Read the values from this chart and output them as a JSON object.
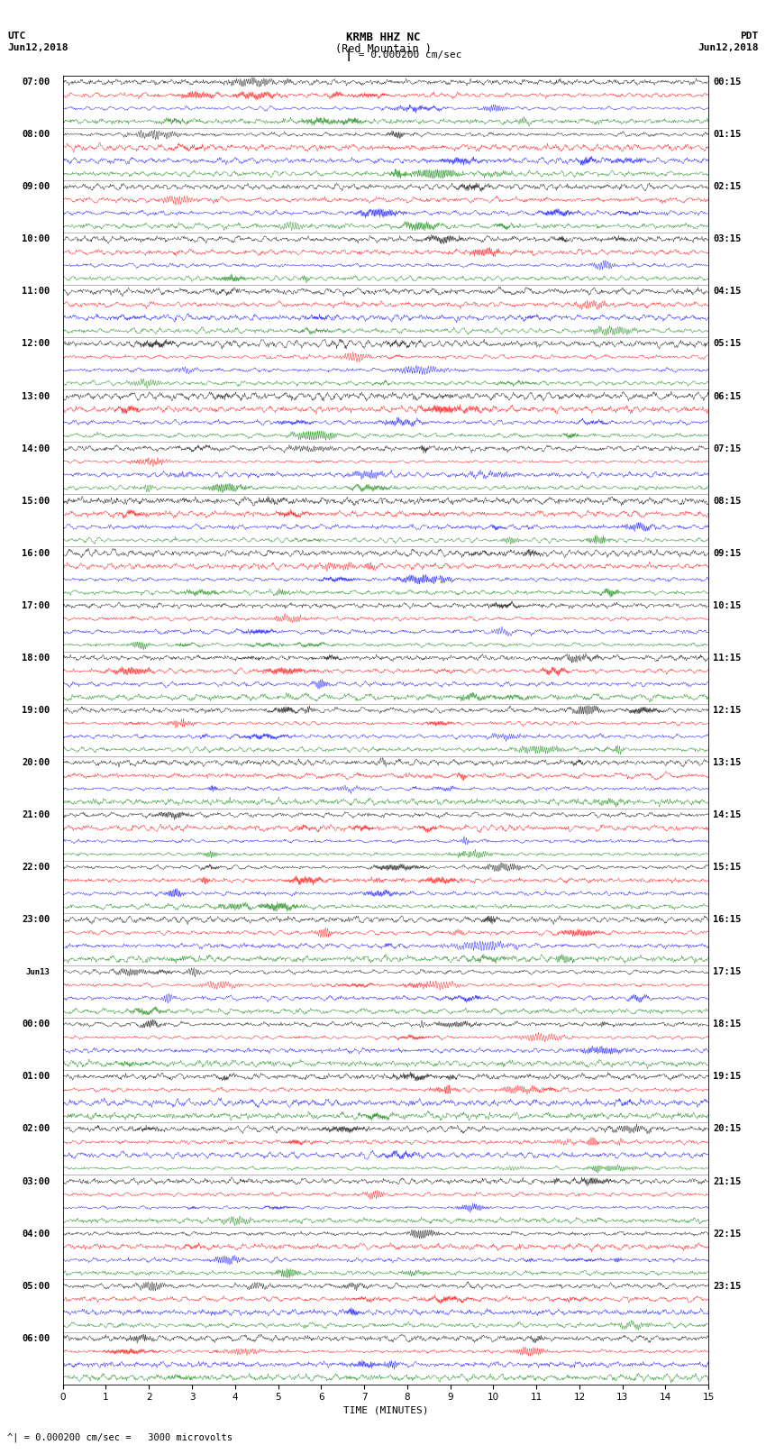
{
  "title_line1": "KRMB HHZ NC",
  "title_line2": "(Red Mountain )",
  "scale_text": "= 0.000200 cm/sec",
  "footer_text": "^| = 0.000200 cm/sec =   3000 microvolts",
  "utc_label": "UTC",
  "pdt_label": "PDT",
  "date_left": "Jun12,2018",
  "date_right": "Jun12,2018",
  "xlabel": "TIME (MINUTES)",
  "left_times": [
    "07:00",
    "08:00",
    "09:00",
    "10:00",
    "11:00",
    "12:00",
    "13:00",
    "14:00",
    "15:00",
    "16:00",
    "17:00",
    "18:00",
    "19:00",
    "20:00",
    "21:00",
    "22:00",
    "23:00",
    "Jun13",
    "00:00",
    "01:00",
    "02:00",
    "03:00",
    "04:00",
    "05:00",
    "06:00"
  ],
  "right_times": [
    "00:15",
    "01:15",
    "02:15",
    "03:15",
    "04:15",
    "05:15",
    "06:15",
    "07:15",
    "08:15",
    "09:15",
    "10:15",
    "11:15",
    "12:15",
    "13:15",
    "14:15",
    "15:15",
    "16:15",
    "17:15",
    "18:15",
    "19:15",
    "20:15",
    "21:15",
    "22:15",
    "23:15"
  ],
  "n_rows": 25,
  "traces_per_row": 4,
  "colors": [
    "black",
    "red",
    "blue",
    "green"
  ],
  "time_points": 1800,
  "x_ticks": [
    0,
    1,
    2,
    3,
    4,
    5,
    6,
    7,
    8,
    9,
    10,
    11,
    12,
    13,
    14,
    15
  ],
  "figsize": [
    8.5,
    16.13
  ],
  "background_color": "white"
}
